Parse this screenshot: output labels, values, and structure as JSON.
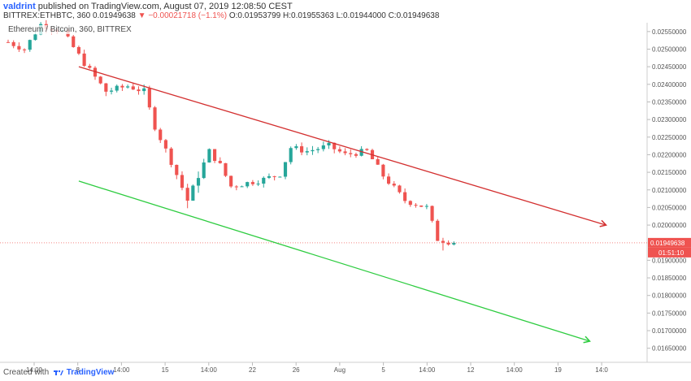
{
  "header": {
    "user": "valdrint",
    "published_text": "published on TradingView.com, August 07, 2019 12:08:50 CEST",
    "symbol_text": "BITTREX:ETHBTC, 360",
    "last": "0.01949638",
    "change": "▼ −0.00021718 (−1.1%)",
    "ohlc": "O:0.01953799 H:0.01955363 L:0.01944000 C:0.01949638"
  },
  "legend": "Ethereum / Bitcoin, 360, BITTREX",
  "footer": {
    "created_with": "Created with",
    "brand": "TradingView"
  },
  "chart_data": {
    "type": "candlestick",
    "y_ticks": [
      "0.02550000",
      "0.02500000",
      "0.02450000",
      "0.02400000",
      "0.02350000",
      "0.02300000",
      "0.02250000",
      "0.02200000",
      "0.02150000",
      "0.02100000",
      "0.02050000",
      "0.02000000",
      "0.01900000",
      "0.01850000",
      "0.01800000",
      "0.01750000",
      "0.01700000",
      "0.01650000"
    ],
    "ylim": [
      0.0161,
      0.02575
    ],
    "x_ticks": [
      "14:00",
      "8",
      "14:00",
      "15",
      "14:00",
      "22",
      "26",
      "Aug",
      "5",
      "14:00",
      "12",
      "14:00",
      "19",
      "14:0"
    ],
    "price_label": "0.01949638",
    "countdown_label": "01:51:10",
    "current_price": 0.01949638,
    "colors": {
      "up": "#26a69a",
      "down": "#ef5350",
      "upper_trend": "#d32f2f",
      "lower_trend": "#2ecc40",
      "price_line": "#ef5350"
    },
    "trendlines": [
      {
        "name": "upper",
        "start": {
          "bar": 13,
          "price": 0.0245
        },
        "end": {
          "bar": 110,
          "price": 0.02
        }
      },
      {
        "name": "lower",
        "start": {
          "bar": 13,
          "price": 0.02125
        },
        "end": {
          "bar": 107,
          "price": 0.0167
        }
      }
    ],
    "close_path": [
      {
        "bar": 0,
        "price": 0.0252
      },
      {
        "bar": 3,
        "price": 0.025
      },
      {
        "bar": 6,
        "price": 0.0257
      },
      {
        "bar": 10,
        "price": 0.0255
      },
      {
        "bar": 14,
        "price": 0.0246
      },
      {
        "bar": 18,
        "price": 0.0238
      },
      {
        "bar": 22,
        "price": 0.02395
      },
      {
        "bar": 25,
        "price": 0.0238
      },
      {
        "bar": 27,
        "price": 0.0228
      },
      {
        "bar": 30,
        "price": 0.0218
      },
      {
        "bar": 33,
        "price": 0.0207
      },
      {
        "bar": 35,
        "price": 0.0214
      },
      {
        "bar": 37,
        "price": 0.0221
      },
      {
        "bar": 39,
        "price": 0.0217
      },
      {
        "bar": 41,
        "price": 0.0211
      },
      {
        "bar": 44,
        "price": 0.0212
      },
      {
        "bar": 47,
        "price": 0.0213
      },
      {
        "bar": 50,
        "price": 0.02145
      },
      {
        "bar": 52,
        "price": 0.0222
      },
      {
        "bar": 55,
        "price": 0.0221
      },
      {
        "bar": 59,
        "price": 0.02225
      },
      {
        "bar": 62,
        "price": 0.022
      },
      {
        "bar": 66,
        "price": 0.0221
      },
      {
        "bar": 69,
        "price": 0.0214
      },
      {
        "bar": 73,
        "price": 0.0207
      },
      {
        "bar": 77,
        "price": 0.0205
      },
      {
        "bar": 79,
        "price": 0.0196
      },
      {
        "bar": 82,
        "price": 0.0195
      }
    ]
  }
}
